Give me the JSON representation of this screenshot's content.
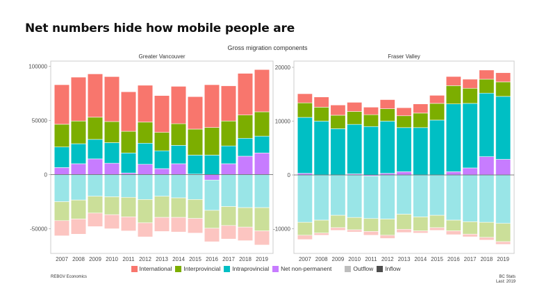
{
  "page": {
    "title": "Net numbers hide how mobile people are",
    "footer_left": "REBGV Economics",
    "footer_right_line1": "BC Stats",
    "footer_right_line2": "Last: 2019"
  },
  "legend": {
    "items": [
      {
        "label": "International",
        "color": "#F8766D"
      },
      {
        "label": "Interprovincial",
        "color": "#7CAE00"
      },
      {
        "label": "Intraprovincial",
        "color": "#00BFC4"
      },
      {
        "label": "Net non-permanent",
        "color": "#C77CFF"
      },
      {
        "label": "Outflow",
        "color": "#BDBDBD"
      },
      {
        "label": "Inflow",
        "color": "#4D4D4D"
      }
    ]
  },
  "chart_data": [
    {
      "type": "bar",
      "stacked": true,
      "title": "Gross migration components",
      "panel": "Greater Vancouver",
      "categories": [
        "2007",
        "2008",
        "2009",
        "2010",
        "2011",
        "2012",
        "2013",
        "2014",
        "2015",
        "2016",
        "2017",
        "2018",
        "2019"
      ],
      "ylim": [
        -70000,
        102000
      ],
      "yticks": [
        100000,
        50000,
        0,
        -50000
      ],
      "inflow_series": [
        {
          "name": "Net non-permanent",
          "values": [
            6500,
            10000,
            14500,
            10500,
            1500,
            9500,
            5500,
            10000,
            500,
            -5000,
            10000,
            17000,
            20000
          ]
        },
        {
          "name": "Intraprovincial",
          "values": [
            19000,
            18500,
            18000,
            19000,
            18500,
            19500,
            16500,
            17000,
            17500,
            18000,
            16500,
            16500,
            15500
          ]
        },
        {
          "name": "Interprovincial",
          "values": [
            21000,
            21000,
            20500,
            19500,
            20000,
            19500,
            17000,
            20000,
            24000,
            25500,
            23000,
            21500,
            22500
          ]
        },
        {
          "name": "International",
          "values": [
            36500,
            40500,
            40000,
            41500,
            36500,
            34000,
            34000,
            34500,
            30000,
            39500,
            32500,
            38500,
            39000
          ]
        }
      ],
      "outflow_series": [
        {
          "name": "Intraprovincial",
          "values": [
            -25000,
            -23500,
            -20000,
            -20500,
            -21000,
            -23000,
            -20000,
            -21500,
            -23000,
            -28000,
            -29500,
            -30500,
            -30500
          ]
        },
        {
          "name": "Interprovincial",
          "values": [
            -17500,
            -17500,
            -15500,
            -16500,
            -18000,
            -21500,
            -19500,
            -18000,
            -17500,
            -16500,
            -17500,
            -18000,
            -21500
          ]
        },
        {
          "name": "International",
          "values": [
            -14000,
            -14000,
            -12500,
            -13000,
            -13000,
            -13000,
            -13000,
            -13500,
            -13500,
            -12500,
            -12500,
            -12500,
            -13000
          ]
        }
      ]
    },
    {
      "type": "bar",
      "stacked": true,
      "panel": "Fraser Valley",
      "categories": [
        "2007",
        "2008",
        "2009",
        "2010",
        "2011",
        "2012",
        "2013",
        "2014",
        "2015",
        "2016",
        "2017",
        "2018",
        "2019"
      ],
      "ylim": [
        -14000,
        20800
      ],
      "yticks": [
        20000,
        10000,
        0,
        -10000
      ],
      "inflow_series": [
        {
          "name": "Net non-permanent",
          "values": [
            300,
            0,
            0,
            200,
            -200,
            300,
            600,
            0,
            0,
            600,
            1300,
            3400,
            2900
          ]
        },
        {
          "name": "Intraprovincial",
          "values": [
            10400,
            10000,
            8600,
            9200,
            9000,
            9700,
            8200,
            8800,
            10200,
            12600,
            12000,
            11800,
            11700
          ]
        },
        {
          "name": "Interprovincial",
          "values": [
            2700,
            2600,
            2500,
            2400,
            2200,
            2300,
            2200,
            2700,
            3100,
            3400,
            2800,
            2600,
            2700
          ]
        },
        {
          "name": "International",
          "values": [
            1700,
            1900,
            1900,
            1700,
            1400,
            1700,
            1500,
            1700,
            1500,
            1700,
            1700,
            1700,
            1700
          ]
        }
      ],
      "outflow_series": [
        {
          "name": "Intraprovincial",
          "values": [
            -8800,
            -8400,
            -7500,
            -7900,
            -7900,
            -8200,
            -7300,
            -7800,
            -7500,
            -8400,
            -8700,
            -8800,
            -9000
          ]
        },
        {
          "name": "Interprovincial",
          "values": [
            -2400,
            -2400,
            -2300,
            -2300,
            -2400,
            -3000,
            -2800,
            -2600,
            -2300,
            -2000,
            -2300,
            -2800,
            -3400
          ]
        },
        {
          "name": "International",
          "values": [
            -800,
            -400,
            -500,
            -400,
            -700,
            -600,
            -600,
            -400,
            -500,
            -700,
            -500,
            -500,
            -500
          ]
        }
      ]
    }
  ]
}
